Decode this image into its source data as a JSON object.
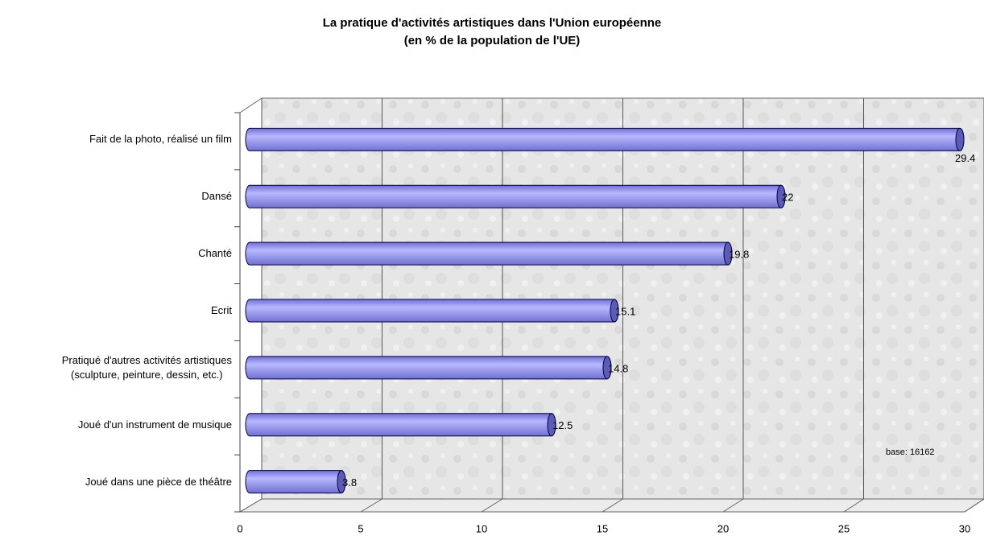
{
  "chart_data": {
    "type": "bar",
    "orientation": "horizontal",
    "title": "La pratique d'activités artistiques dans l'Union européenne\n(en % de la population de l'UE)",
    "categories": [
      "Fait de la photo, réalisé un film",
      "Dansé",
      "Chanté",
      "Ecrit",
      "Pratiqué d'autres activités artistiques\n(sculpture, peinture, dessin, etc.)",
      "Joué d'un instrument de musique",
      "Joué dans une pièce de théâtre"
    ],
    "values": [
      29.4,
      22,
      19.8,
      15.1,
      14.8,
      12.5,
      3.8
    ],
    "color": "#9999ff",
    "xlim": [
      0,
      30
    ],
    "xticks": [
      0,
      5,
      10,
      15,
      20,
      25,
      30
    ],
    "grid": true,
    "annotation": "base: 16162"
  }
}
